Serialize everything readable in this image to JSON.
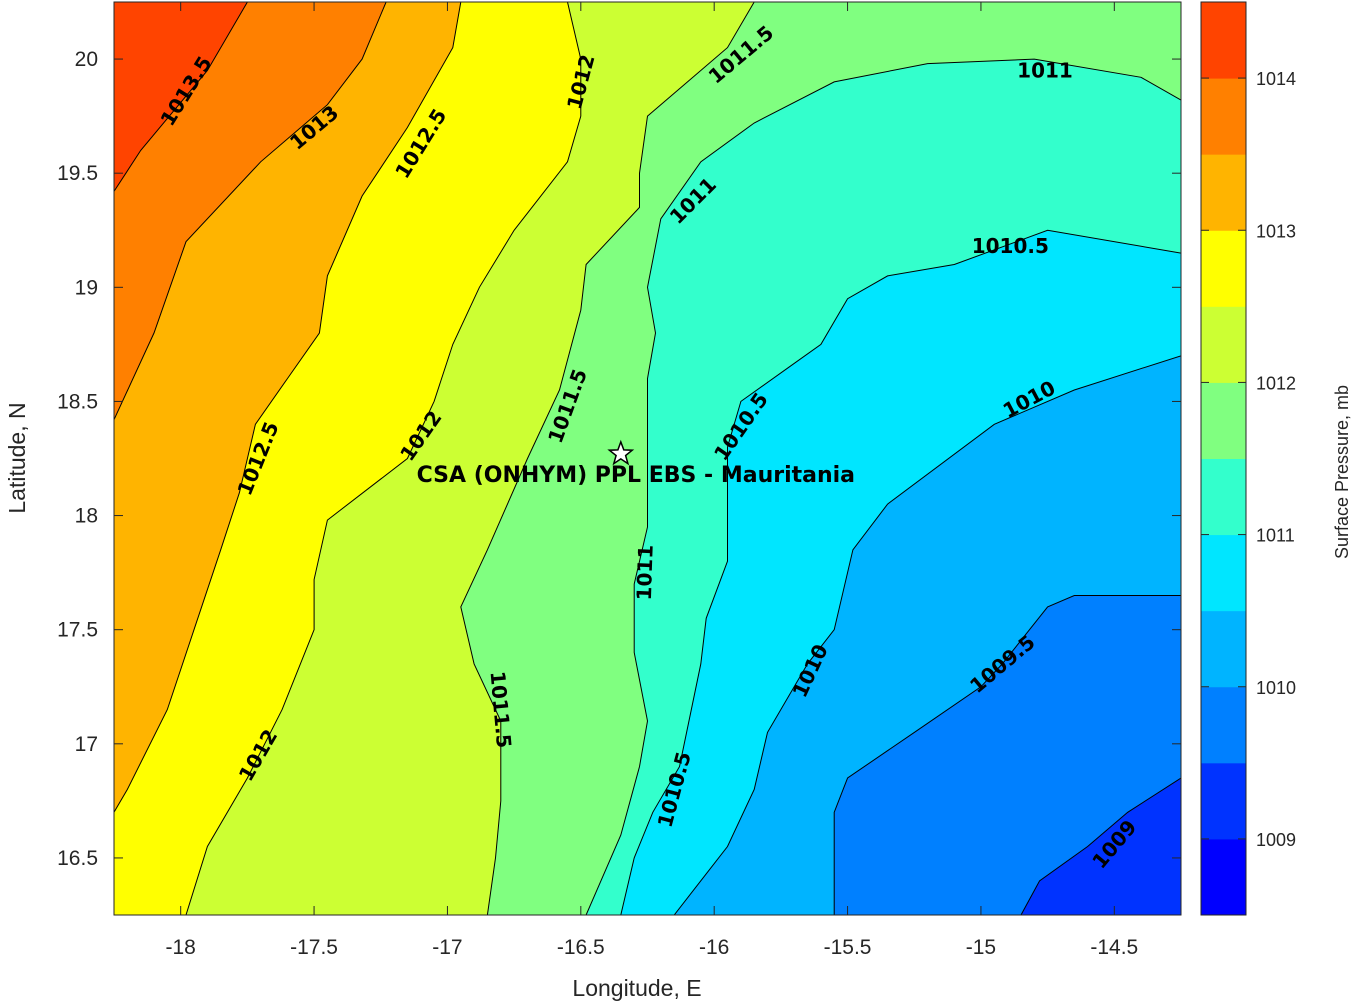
{
  "chart_data": {
    "type": "contour",
    "xlabel": "Longitude, E",
    "ylabel": "Latitude, N",
    "colorbar_label": "Surface Pressure, mb",
    "xlim": [
      -18.25,
      -14.25
    ],
    "ylim": [
      16.25,
      20.25
    ],
    "x_ticks": [
      -18,
      -17.5,
      -17,
      -16.5,
      -16,
      -15.5,
      -15,
      -14.5
    ],
    "x_tick_labels": [
      "-18",
      "-17.5",
      "-17",
      "-16.5",
      "-16",
      "-15.5",
      "-15",
      "-14.5"
    ],
    "y_ticks": [
      16.5,
      17,
      17.5,
      18,
      18.5,
      19,
      19.5,
      20
    ],
    "y_tick_labels": [
      "16.5",
      "17",
      "17.5",
      "18",
      "18.5",
      "19",
      "19.5",
      "20"
    ],
    "colorbar_range": [
      1008.5,
      1014.5
    ],
    "colorbar_ticks": [
      1009,
      1010,
      1011,
      1012,
      1013,
      1014
    ],
    "colorbar_tick_labels": [
      "1009",
      "1010",
      "1011",
      "1012",
      "1013",
      "1014"
    ],
    "contour_levels": [
      1009,
      1009.5,
      1010,
      1010.5,
      1011,
      1011.5,
      1012,
      1012.5,
      1013,
      1013.5,
      1014
    ],
    "band_colors": [
      "#0000ff",
      "#0033ff",
      "#0080ff",
      "#00b4ff",
      "#00e6ff",
      "#33ffcc",
      "#80ff80",
      "#ccff33",
      "#ffff00",
      "#ffb400",
      "#ff8000",
      "#ff4400",
      "#ff0000"
    ],
    "contour_lines": [
      {
        "level": 1013.5,
        "points": [
          [
            -17.75,
            20.25
          ],
          [
            -17.9,
            19.95
          ],
          [
            -18.15,
            19.6
          ],
          [
            -18.25,
            19.42
          ]
        ]
      },
      {
        "level": 1013,
        "points": [
          [
            -17.23,
            20.25
          ],
          [
            -17.32,
            20.0
          ],
          [
            -17.45,
            19.8
          ],
          [
            -17.7,
            19.55
          ],
          [
            -17.98,
            19.2
          ],
          [
            -18.1,
            18.8
          ],
          [
            -18.25,
            18.42
          ]
        ]
      },
      {
        "level": 1012.5,
        "points": [
          [
            -16.95,
            20.25
          ],
          [
            -16.98,
            20.05
          ],
          [
            -17.15,
            19.7
          ],
          [
            -17.32,
            19.4
          ],
          [
            -17.45,
            19.05
          ],
          [
            -17.48,
            18.8
          ],
          [
            -17.6,
            18.6
          ],
          [
            -17.72,
            18.4
          ],
          [
            -17.78,
            18.1
          ],
          [
            -17.85,
            17.85
          ],
          [
            -17.95,
            17.5
          ],
          [
            -18.05,
            17.15
          ],
          [
            -18.2,
            16.8
          ],
          [
            -18.25,
            16.7
          ]
        ]
      },
      {
        "level": 1012,
        "points": [
          [
            -16.55,
            20.25
          ],
          [
            -16.5,
            20.0
          ],
          [
            -16.5,
            19.75
          ],
          [
            -16.55,
            19.55
          ],
          [
            -16.75,
            19.25
          ],
          [
            -16.88,
            19.0
          ],
          [
            -16.98,
            18.75
          ],
          [
            -17.05,
            18.5
          ],
          [
            -17.15,
            18.25
          ],
          [
            -17.45,
            17.98
          ],
          [
            -17.5,
            17.72
          ],
          [
            -17.5,
            17.5
          ],
          [
            -17.62,
            17.15
          ],
          [
            -17.75,
            16.85
          ],
          [
            -17.9,
            16.55
          ],
          [
            -17.98,
            16.25
          ]
        ]
      },
      {
        "level": 1011.5,
        "points": [
          [
            -15.85,
            20.25
          ],
          [
            -15.95,
            20.05
          ],
          [
            -16.1,
            19.9
          ],
          [
            -16.25,
            19.75
          ],
          [
            -16.28,
            19.5
          ],
          [
            -16.28,
            19.35
          ],
          [
            -16.48,
            19.1
          ],
          [
            -16.5,
            18.9
          ],
          [
            -16.58,
            18.55
          ],
          [
            -16.7,
            18.25
          ],
          [
            -16.85,
            17.85
          ],
          [
            -16.95,
            17.6
          ],
          [
            -16.9,
            17.35
          ],
          [
            -16.8,
            17.1
          ],
          [
            -16.8,
            16.75
          ],
          [
            -16.82,
            16.5
          ],
          [
            -16.85,
            16.25
          ]
        ]
      },
      {
        "level": 1011,
        "points": [
          [
            -14.25,
            19.82
          ],
          [
            -14.4,
            19.92
          ],
          [
            -14.8,
            20.0
          ],
          [
            -15.2,
            19.98
          ],
          [
            -15.55,
            19.9
          ],
          [
            -15.85,
            19.72
          ],
          [
            -16.05,
            19.55
          ],
          [
            -16.2,
            19.3
          ],
          [
            -16.25,
            19.0
          ],
          [
            -16.22,
            18.8
          ],
          [
            -16.25,
            18.6
          ],
          [
            -16.25,
            18.3
          ],
          [
            -16.25,
            17.95
          ],
          [
            -16.3,
            17.7
          ],
          [
            -16.3,
            17.4
          ],
          [
            -16.25,
            17.1
          ],
          [
            -16.28,
            16.9
          ],
          [
            -16.35,
            16.6
          ],
          [
            -16.48,
            16.25
          ]
        ]
      },
      {
        "level": 1010.5,
        "points": [
          [
            -14.25,
            19.15
          ],
          [
            -14.75,
            19.25
          ],
          [
            -15.1,
            19.1
          ],
          [
            -15.35,
            19.05
          ],
          [
            -15.5,
            18.95
          ],
          [
            -15.6,
            18.75
          ],
          [
            -15.72,
            18.65
          ],
          [
            -15.9,
            18.5
          ],
          [
            -15.95,
            18.3
          ],
          [
            -15.95,
            17.8
          ],
          [
            -16.03,
            17.55
          ],
          [
            -16.05,
            17.35
          ],
          [
            -16.13,
            16.9
          ],
          [
            -16.23,
            16.7
          ],
          [
            -16.3,
            16.5
          ],
          [
            -16.35,
            16.25
          ]
        ]
      },
      {
        "level": 1010,
        "points": [
          [
            -14.25,
            18.7
          ],
          [
            -14.65,
            18.55
          ],
          [
            -14.95,
            18.4
          ],
          [
            -15.35,
            18.05
          ],
          [
            -15.48,
            17.85
          ],
          [
            -15.55,
            17.5
          ],
          [
            -15.65,
            17.35
          ],
          [
            -15.8,
            17.05
          ],
          [
            -15.85,
            16.8
          ],
          [
            -15.95,
            16.55
          ],
          [
            -16.05,
            16.4
          ],
          [
            -16.15,
            16.25
          ]
        ]
      },
      {
        "level": 1009.5,
        "points": [
          [
            -14.25,
            17.65
          ],
          [
            -14.65,
            17.65
          ],
          [
            -14.75,
            17.6
          ],
          [
            -14.92,
            17.35
          ],
          [
            -15.0,
            17.25
          ],
          [
            -15.25,
            17.05
          ],
          [
            -15.5,
            16.85
          ],
          [
            -15.55,
            16.7
          ],
          [
            -15.55,
            16.5
          ],
          [
            -15.55,
            16.25
          ]
        ]
      },
      {
        "level": 1009,
        "points": [
          [
            -14.25,
            16.85
          ],
          [
            -14.45,
            16.7
          ],
          [
            -14.6,
            16.55
          ],
          [
            -14.78,
            16.4
          ],
          [
            -14.85,
            16.25
          ]
        ]
      }
    ],
    "contour_labels": [
      {
        "text": "1013.5",
        "x": -17.98,
        "y": 19.86,
        "angle": -58
      },
      {
        "text": "1013",
        "x": -17.5,
        "y": 19.7,
        "angle": -40
      },
      {
        "text": "1012.5",
        "x": -17.1,
        "y": 19.63,
        "angle": -58
      },
      {
        "text": "1012",
        "x": -16.5,
        "y": 19.9,
        "angle": -75
      },
      {
        "text": "1011.5",
        "x": -15.9,
        "y": 20.02,
        "angle": -40
      },
      {
        "text": "1011",
        "x": -14.76,
        "y": 19.95,
        "angle": 0
      },
      {
        "text": "1011",
        "x": -16.08,
        "y": 19.38,
        "angle": -45
      },
      {
        "text": "1010.5",
        "x": -14.89,
        "y": 19.18,
        "angle": 0
      },
      {
        "text": "1012.5",
        "x": -17.71,
        "y": 18.25,
        "angle": -68
      },
      {
        "text": "1012",
        "x": -17.1,
        "y": 18.35,
        "angle": -55
      },
      {
        "text": "1011.5",
        "x": -16.55,
        "y": 18.48,
        "angle": -70
      },
      {
        "text": "1010.5",
        "x": -15.9,
        "y": 18.39,
        "angle": -55
      },
      {
        "text": "1010",
        "x": -14.82,
        "y": 18.51,
        "angle": -28
      },
      {
        "text": "1011",
        "x": -16.26,
        "y": 17.75,
        "angle": -88
      },
      {
        "text": "1011.5",
        "x": -16.8,
        "y": 17.15,
        "angle": 85
      },
      {
        "text": "1010",
        "x": -15.64,
        "y": 17.32,
        "angle": -65
      },
      {
        "text": "1009.5",
        "x": -14.92,
        "y": 17.35,
        "angle": -40
      },
      {
        "text": "1012",
        "x": -17.71,
        "y": 16.95,
        "angle": -60
      },
      {
        "text": "1010.5",
        "x": -16.15,
        "y": 16.8,
        "angle": -75
      },
      {
        "text": "1009",
        "x": -14.5,
        "y": 16.56,
        "angle": -50
      }
    ],
    "annotation": {
      "text": "CSA (ONHYM) PPL EBS  - Mauritania",
      "marker": "star",
      "marker_lon": -16.35,
      "marker_lat": 18.27
    }
  }
}
